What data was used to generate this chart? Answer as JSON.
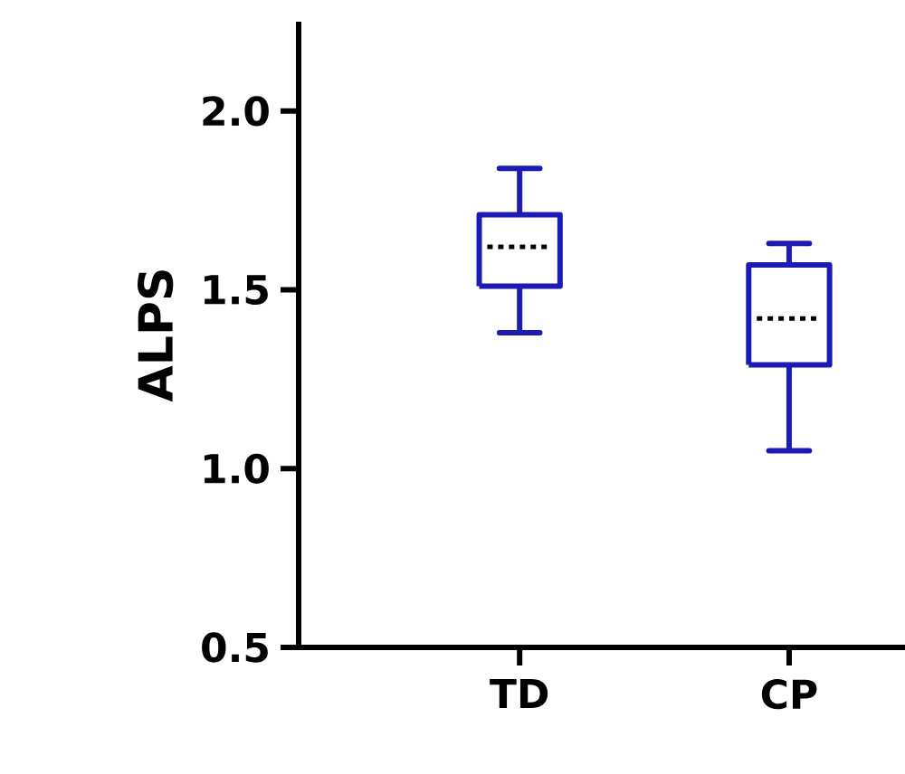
{
  "chart_data": {
    "type": "box",
    "ylabel": "ALPS",
    "categories": [
      "TD",
      "CP"
    ],
    "color": "#1c1cb4",
    "boxes": [
      {
        "low": 1.38,
        "q1": 1.51,
        "median": 1.62,
        "q3": 1.71,
        "high": 1.84
      },
      {
        "low": 1.05,
        "q1": 1.29,
        "median": 1.42,
        "q3": 1.57,
        "high": 1.63
      }
    ],
    "ylim": [
      0.5,
      2.25
    ],
    "yticks": [
      {
        "value": 0.5,
        "label": "0.5"
      },
      {
        "value": 1.0,
        "label": "1.0"
      },
      {
        "value": 1.5,
        "label": "1.5"
      },
      {
        "value": 2.0,
        "label": "2.0"
      }
    ]
  }
}
